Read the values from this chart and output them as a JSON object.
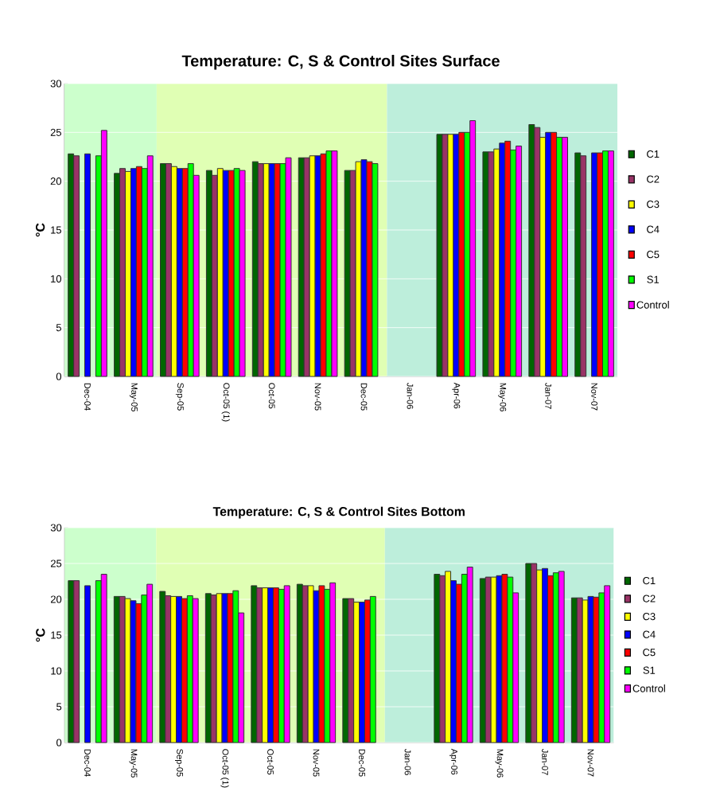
{
  "chart_data": [
    {
      "type": "bar",
      "title": "Temperature: C, S & Control Sites Surface",
      "ylabel": "°C",
      "categories": [
        "Dec-04",
        "May-05",
        "Sep-05",
        "Oct-05 (1)",
        "Oct-05",
        "Nov-05",
        "Dec-05",
        "Jan-06",
        "Apr-06",
        "May-06",
        "Jan-07",
        "Nov-07"
      ],
      "series": [
        {
          "name": "C1",
          "color": "#006600",
          "values": [
            22.8,
            20.8,
            21.8,
            21.1,
            22.0,
            22.4,
            21.1,
            null,
            24.8,
            23.0,
            25.8,
            22.9
          ]
        },
        {
          "name": "C2",
          "color": "#993366",
          "values": [
            22.6,
            21.3,
            21.8,
            20.6,
            21.8,
            22.4,
            21.1,
            null,
            24.8,
            23.0,
            25.5,
            22.6
          ]
        },
        {
          "name": "C3",
          "color": "#ffff00",
          "values": [
            null,
            21.0,
            21.5,
            21.3,
            21.8,
            22.6,
            22.0,
            null,
            24.8,
            23.3,
            24.5,
            null
          ]
        },
        {
          "name": "C4",
          "color": "#0000ff",
          "values": [
            22.8,
            21.3,
            21.3,
            21.1,
            21.8,
            22.6,
            22.2,
            null,
            24.8,
            23.9,
            25.0,
            22.9
          ]
        },
        {
          "name": "C5",
          "color": "#ff0000",
          "values": [
            null,
            21.5,
            21.3,
            21.1,
            21.8,
            22.8,
            22.0,
            null,
            25.0,
            24.1,
            25.0,
            22.9
          ]
        },
        {
          "name": "S1",
          "color": "#00ff00",
          "values": [
            22.6,
            21.3,
            21.8,
            21.3,
            21.8,
            23.1,
            21.8,
            null,
            25.0,
            23.2,
            24.5,
            23.1
          ]
        },
        {
          "name": "Control",
          "color": "#ff00ff",
          "values": [
            25.2,
            22.6,
            20.6,
            21.1,
            22.4,
            23.1,
            null,
            null,
            26.2,
            23.6,
            24.5,
            23.1
          ]
        }
      ],
      "bands": [
        {
          "axis": "x",
          "from": "Dec-04",
          "to": "May-05",
          "color": "#ccffcc"
        },
        {
          "axis": "x",
          "from": "Sep-05",
          "to": "Dec-05",
          "color": "#e0ffb4"
        },
        {
          "axis": "x",
          "from": "Jan-06",
          "to": "Nov-07",
          "color": "#bdeedb"
        }
      ],
      "ylim": [
        0,
        30
      ],
      "yticks": [
        0,
        5,
        10,
        15,
        20,
        25,
        30
      ],
      "grid": "y",
      "legend": "right"
    },
    {
      "type": "bar",
      "title": "Temperature: C, S & Control Sites Bottom",
      "ylabel": "°C",
      "categories": [
        "Dec-04",
        "May-05",
        "Sep-05",
        "Oct-05 (1)",
        "Oct-05",
        "Nov-05",
        "Dec-05",
        "Jan-06",
        "Apr-06",
        "May-06",
        "Jan-07",
        "Nov-07"
      ],
      "series": [
        {
          "name": "C1",
          "color": "#006600",
          "values": [
            22.6,
            20.4,
            21.1,
            20.8,
            21.9,
            22.1,
            20.1,
            null,
            23.5,
            22.9,
            25.0,
            20.2
          ]
        },
        {
          "name": "C2",
          "color": "#993366",
          "values": [
            22.6,
            20.4,
            20.5,
            20.6,
            21.6,
            21.9,
            20.1,
            null,
            23.3,
            23.1,
            25.0,
            20.2
          ]
        },
        {
          "name": "C3",
          "color": "#ffff00",
          "values": [
            null,
            20.1,
            20.4,
            20.8,
            21.6,
            21.9,
            19.6,
            null,
            23.9,
            23.1,
            24.1,
            19.9
          ]
        },
        {
          "name": "C4",
          "color": "#0000ff",
          "values": [
            21.9,
            19.8,
            20.4,
            20.8,
            21.6,
            21.2,
            19.6,
            null,
            22.6,
            23.3,
            24.3,
            20.4
          ]
        },
        {
          "name": "C5",
          "color": "#ff0000",
          "values": [
            null,
            19.4,
            20.1,
            20.8,
            21.6,
            21.9,
            19.9,
            null,
            22.1,
            23.5,
            23.3,
            20.3
          ]
        },
        {
          "name": "S1",
          "color": "#00ff00",
          "values": [
            22.6,
            20.6,
            20.5,
            21.2,
            21.4,
            21.4,
            20.4,
            null,
            23.5,
            23.1,
            23.7,
            20.9
          ]
        },
        {
          "name": "Control",
          "color": "#ff00ff",
          "values": [
            23.5,
            22.1,
            20.1,
            18.1,
            21.9,
            22.3,
            null,
            null,
            24.5,
            20.9,
            23.9,
            21.9
          ]
        }
      ],
      "bands": [
        {
          "axis": "x",
          "from": "Dec-04",
          "to": "May-05",
          "color": "#ccffcc"
        },
        {
          "axis": "x",
          "from": "Sep-05",
          "to": "Dec-05",
          "color": "#e0ffb4"
        },
        {
          "axis": "x",
          "from": "Jan-06",
          "to": "Nov-07",
          "color": "#bdeedb"
        }
      ],
      "ylim": [
        0,
        30
      ],
      "yticks": [
        0,
        5,
        10,
        15,
        20,
        25,
        30
      ],
      "grid": "y",
      "legend": "right"
    }
  ]
}
